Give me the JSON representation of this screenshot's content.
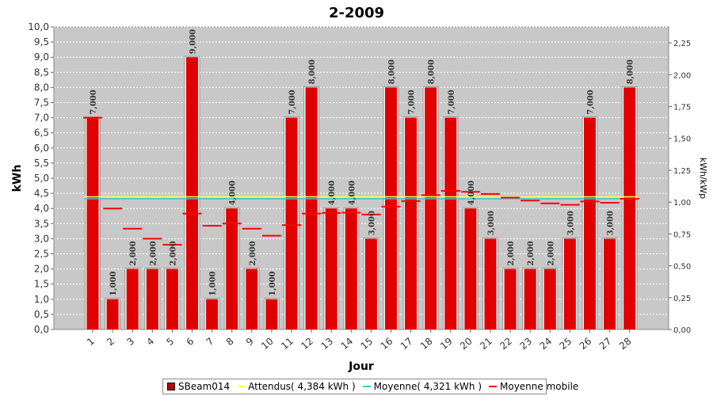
{
  "chart_data": {
    "type": "bar",
    "title": "2-2009",
    "xlabel": "Jour",
    "ylabel": "kWh",
    "y2label": "kWh/kWp",
    "ylim": [
      0,
      10
    ],
    "y2lim": [
      0,
      2.375
    ],
    "yticks": [
      "0,0",
      "0,5",
      "1,0",
      "1,5",
      "2,0",
      "2,5",
      "3,0",
      "3,5",
      "4,0",
      "4,5",
      "5,0",
      "5,5",
      "6,0",
      "6,5",
      "7,0",
      "7,5",
      "8,0",
      "8,5",
      "9,0",
      "9,5",
      "10,0"
    ],
    "y2ticks": [
      "0,00",
      "0,25",
      "0,50",
      "0,75",
      "1,00",
      "1,25",
      "1,50",
      "1,75",
      "2,00",
      "2,25"
    ],
    "categories": [
      "1",
      "2",
      "3",
      "4",
      "5",
      "6",
      "7",
      "8",
      "9",
      "10",
      "11",
      "12",
      "13",
      "14",
      "15",
      "16",
      "17",
      "18",
      "19",
      "20",
      "21",
      "22",
      "23",
      "24",
      "25",
      "26",
      "27",
      "28"
    ],
    "series": [
      {
        "name": "SBeam014",
        "kind": "bar",
        "color": "#e00000",
        "values": [
          7,
          1,
          2,
          2,
          2,
          9,
          1,
          4,
          2,
          1,
          7,
          8,
          4,
          4,
          3,
          8,
          7,
          8,
          7,
          4,
          3,
          2,
          2,
          2,
          3,
          7,
          3,
          8
        ],
        "labels": [
          "7,000",
          "1,000",
          "2,000",
          "2,000",
          "2,000",
          "9,000",
          "1,000",
          "4,000",
          "2,000",
          "1,000",
          "7,000",
          "8,000",
          "4,000",
          "4,000",
          "3,000",
          "8,000",
          "7,000",
          "8,000",
          "7,000",
          "4,000",
          "3,000",
          "2,000",
          "2,000",
          "2,000",
          "3,000",
          "7,000",
          "3,000",
          "8,000"
        ]
      },
      {
        "name": "Attendus( 4,384 kWh )",
        "kind": "hline",
        "color": "#ffff66",
        "value": 4.384
      },
      {
        "name": "Moyenne( 4,321 kWh )",
        "kind": "hline",
        "color": "#33cccc",
        "value": 4.321
      },
      {
        "name": "Moyenne mobile",
        "kind": "step",
        "color": "#ff0000",
        "values": [
          7.0,
          4.0,
          3.33,
          3.0,
          2.8,
          3.83,
          3.43,
          3.5,
          3.33,
          3.1,
          3.45,
          3.83,
          3.85,
          3.86,
          3.8,
          4.06,
          4.24,
          4.44,
          4.58,
          4.55,
          4.48,
          4.36,
          4.26,
          4.17,
          4.12,
          4.23,
          4.19,
          4.32
        ]
      }
    ],
    "legend_position": "bottom",
    "grid": true
  }
}
